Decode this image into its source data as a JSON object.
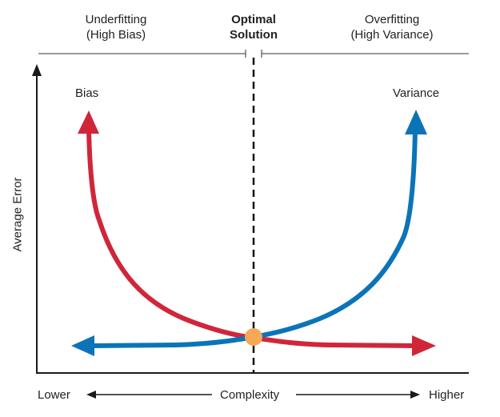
{
  "regions": {
    "left": [
      "Underfitting",
      "(High Bias)"
    ],
    "center": [
      "Optimal",
      "Solution"
    ],
    "right": [
      "Overfitting",
      "(High Variance)"
    ]
  },
  "curves": {
    "bias_label": "Bias",
    "variance_label": "Variance"
  },
  "axes": {
    "ylabel": "Average Error",
    "x_low": "Lower",
    "x_center": "Complexity",
    "x_high": "Higher"
  },
  "colors": {
    "bias": "#D0263A",
    "variance": "#0B74B8",
    "optimum": "#F5A858",
    "axis": "#1a1a1a"
  }
}
